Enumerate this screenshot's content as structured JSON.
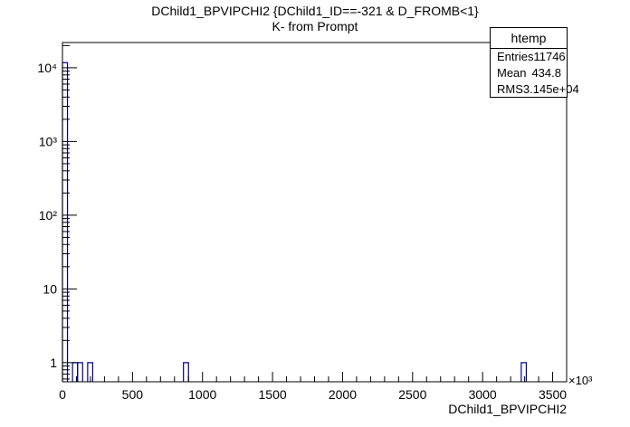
{
  "chart_data": {
    "type": "bar",
    "title": "DChild1_BPVIPCHI2 {DChild1_ID==-321 & D_FROMB<1}",
    "subtitle": "K- from Prompt",
    "xlabel": "DChild1_BPVIPCHI2",
    "x_exponent_label": "×10³",
    "ylabel": "",
    "y_scale": "log",
    "xlim": [
      0,
      3600
    ],
    "ylim": [
      0.55,
      22000
    ],
    "x_ticks": [
      0,
      500,
      1000,
      1500,
      2000,
      2500,
      3000,
      3500
    ],
    "y_ticks": [
      {
        "value": 1,
        "label": "1"
      },
      {
        "value": 10,
        "label": "10"
      },
      {
        "value": 100,
        "label": "10²"
      },
      {
        "value": 1000,
        "label": "10³"
      },
      {
        "value": 10000,
        "label": "10⁴"
      }
    ],
    "bin_width": 36,
    "bins": [
      {
        "x": 0,
        "count": 11736
      },
      {
        "x": 72,
        "count": 1
      },
      {
        "x": 108,
        "count": 1
      },
      {
        "x": 180,
        "count": 1
      },
      {
        "x": 864,
        "count": 1
      },
      {
        "x": 3276,
        "count": 1
      }
    ],
    "bar_color": "#000099",
    "grid": false,
    "stats_box": {
      "name": "htemp",
      "entries_label": "Entries",
      "entries": "11746",
      "mean_label": "Mean",
      "mean": "434.8",
      "rms_label": "RMS",
      "rms": "3.145e+04"
    }
  }
}
